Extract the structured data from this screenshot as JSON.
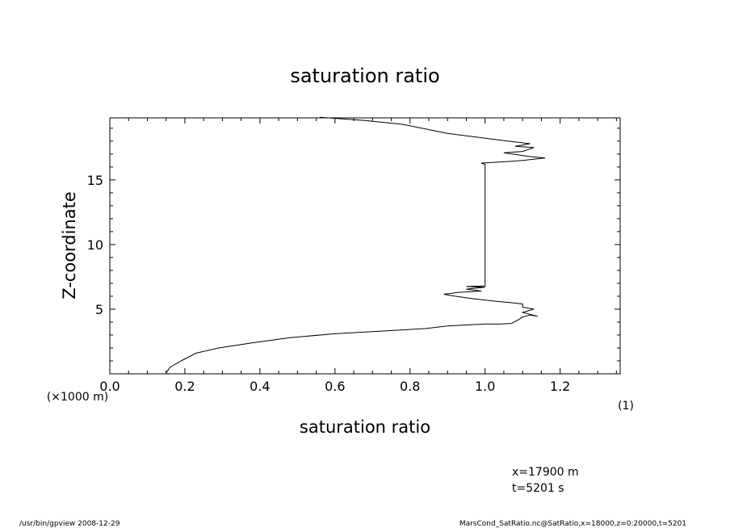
{
  "chart_data": {
    "type": "line",
    "title": "saturation ratio",
    "xlabel": "saturation ratio",
    "xunit": "(1)",
    "ylabel": "Z-coordinate",
    "yunit": "(×1000 m)",
    "xlim": [
      0.0,
      1.36
    ],
    "ylim": [
      0,
      19.8
    ],
    "xticks": [
      "0.0",
      "0.2",
      "0.4",
      "0.6",
      "0.8",
      "1.0",
      "1.2"
    ],
    "yticks": [
      "5",
      "10",
      "15"
    ],
    "grid": false,
    "series": [
      {
        "x": [
          0.15,
          0.16,
          0.19,
          0.23,
          0.29,
          0.38,
          0.48,
          0.6,
          0.72,
          0.84,
          0.9,
          0.96,
          1.0,
          1.04,
          1.07,
          1.09,
          1.1,
          1.12,
          1.14,
          1.1,
          1.13,
          1.1,
          1.1,
          1.07,
          1.03,
          0.97,
          0.92,
          0.89,
          0.93,
          0.99,
          0.95,
          1.0,
          0.95,
          1.0,
          1.0,
          1.0,
          1.0,
          1.0,
          1.0,
          1.0,
          0.99,
          1.05,
          1.1,
          1.16,
          1.12,
          1.05,
          1.1,
          1.13,
          1.08,
          1.12,
          1.06,
          0.9,
          0.78,
          0.68,
          0.56
        ],
        "y": [
          0.05,
          0.5,
          1.0,
          1.6,
          2.0,
          2.4,
          2.8,
          3.1,
          3.3,
          3.5,
          3.7,
          3.8,
          3.85,
          3.85,
          3.9,
          4.2,
          4.4,
          4.55,
          4.45,
          4.75,
          5.0,
          5.15,
          5.4,
          5.5,
          5.6,
          5.8,
          6.0,
          6.15,
          6.3,
          6.4,
          6.55,
          6.7,
          6.75,
          6.8,
          7.0,
          10.0,
          13.0,
          15.0,
          16.0,
          16.2,
          16.3,
          16.4,
          16.5,
          16.7,
          16.8,
          17.1,
          17.2,
          17.5,
          17.6,
          17.8,
          18.0,
          18.6,
          19.3,
          19.6,
          19.85
        ]
      }
    ]
  },
  "annotations": {
    "position_x": "x=17900 m",
    "time": "t=5201 s"
  },
  "footer": {
    "left": "/usr/bin/gpview  2008-12-29",
    "right": "MarsCond_SatRatio.nc@SatRatio,x=18000,z=0:20000,t=5201"
  }
}
